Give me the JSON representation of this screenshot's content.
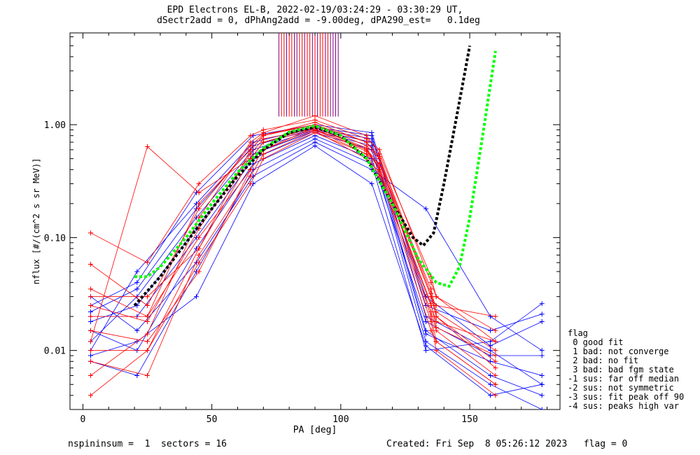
{
  "header": {
    "title_line1": "EPD Electrons EL-B, 2022-02-19/03:24:29 - 03:30:29 UT,",
    "title_line2": "dSectr2add = 0, dPhAng2add = -9.00deg, dPA290_est=   0.1deg"
  },
  "footer": {
    "left": "nspininsum =  1  sectors = 16",
    "right": "Created: Fri Sep  8 05:26:12 2023   flag = 0"
  },
  "legend": {
    "title": "flag",
    "items": [
      " 0 good fit",
      " 1 bad: not converge",
      " 2 bad: no fit",
      " 3 bad: bad fgm state",
      "-1 sus: far off median",
      "-2 sus: not symmetric",
      "-3 sus: fit peak off 90",
      "-4 sus: peaks high var"
    ]
  },
  "chart_data": {
    "type": "line",
    "title": "EPD Electrons EL-B, 2022-02-19/03:24:29 - 03:30:29 UT,",
    "xlabel": "PA [deg]",
    "ylabel": "nflux [#/(cm^2 s sr MeV)]",
    "xlim": [
      -5,
      185
    ],
    "ylim": [
      0.003,
      6.5
    ],
    "yscale": "log",
    "x_ticks": [
      0,
      50,
      100,
      150
    ],
    "y_ticks": [
      0.01,
      0.1,
      1.0
    ],
    "y_tick_labels": [
      "0.01",
      "0.10",
      "1.00"
    ],
    "grid": false,
    "series_colors": {
      "red": "#ff0000",
      "blue": "#0000ff",
      "black_fit": "#000000",
      "green_fit": "#00ff00",
      "purple": "#800080"
    },
    "pa_red_spin": [
      3,
      25,
      45,
      65,
      70,
      90,
      110,
      115,
      135,
      137,
      160
    ],
    "pa_blue_spin": [
      3,
      21,
      44,
      66,
      90,
      112,
      133,
      158,
      178
    ],
    "red_spectra": [
      [
        0.03,
        0.03,
        0.08,
        0.6,
        0.8,
        1.05,
        0.7,
        0.5,
        0.03,
        0.02,
        0.008
      ],
      [
        0.012,
        0.64,
        0.25,
        0.5,
        0.7,
        0.95,
        0.62,
        0.4,
        0.025,
        0.018,
        0.012
      ],
      [
        0.02,
        0.02,
        0.1,
        0.4,
        0.6,
        0.9,
        0.6,
        0.45,
        0.035,
        0.022,
        0.01
      ],
      [
        0.01,
        0.01,
        0.06,
        0.3,
        0.5,
        0.85,
        0.55,
        0.35,
        0.022,
        0.015,
        0.006
      ],
      [
        0.006,
        0.014,
        0.15,
        0.7,
        0.85,
        1.2,
        0.8,
        0.55,
        0.045,
        0.03,
        0.015
      ],
      [
        0.035,
        0.02,
        0.2,
        0.6,
        0.8,
        1.0,
        0.65,
        0.5,
        0.02,
        0.012,
        0.005
      ],
      [
        0.015,
        0.012,
        0.05,
        0.4,
        0.6,
        0.95,
        0.6,
        0.4,
        0.018,
        0.01,
        0.004
      ],
      [
        0.004,
        0.01,
        0.08,
        0.5,
        0.7,
        0.9,
        0.55,
        0.45,
        0.03,
        0.025,
        0.02
      ],
      [
        0.11,
        0.06,
        0.3,
        0.8,
        0.9,
        1.1,
        0.75,
        0.6,
        0.04,
        0.03,
        0.012
      ],
      [
        0.025,
        0.018,
        0.12,
        0.55,
        0.75,
        0.92,
        0.58,
        0.42,
        0.026,
        0.016,
        0.009
      ],
      [
        0.058,
        0.025,
        0.18,
        0.65,
        0.82,
        1.0,
        0.7,
        0.52,
        0.032,
        0.02,
        0.007
      ],
      [
        0.008,
        0.006,
        0.07,
        0.35,
        0.55,
        0.88,
        0.5,
        0.38,
        0.015,
        0.012,
        0.005
      ]
    ],
    "blue_spectra": [
      [
        0.01,
        0.05,
        0.2,
        0.7,
        0.95,
        0.8,
        0.02,
        0.01,
        0.005
      ],
      [
        0.012,
        0.03,
        0.15,
        0.6,
        0.9,
        0.7,
        0.015,
        0.006,
        0.004
      ],
      [
        0.02,
        0.02,
        0.1,
        0.5,
        0.85,
        0.6,
        0.012,
        0.005,
        0.003
      ],
      [
        0.015,
        0.01,
        0.08,
        0.45,
        0.8,
        0.5,
        0.018,
        0.009,
        0.009
      ],
      [
        0.008,
        0.006,
        0.05,
        0.4,
        0.75,
        0.45,
        0.01,
        0.012,
        0.026
      ],
      [
        0.025,
        0.04,
        0.25,
        0.8,
        1.0,
        0.85,
        0.025,
        0.015,
        0.021
      ],
      [
        0.018,
        0.025,
        0.12,
        0.55,
        0.88,
        0.65,
        0.014,
        0.008,
        0.006
      ],
      [
        0.03,
        0.015,
        0.06,
        0.35,
        0.7,
        0.4,
        0.18,
        0.02,
        0.01
      ],
      [
        0.009,
        0.012,
        0.03,
        0.3,
        0.65,
        0.3,
        0.011,
        0.004,
        0.005
      ],
      [
        0.022,
        0.035,
        0.18,
        0.65,
        0.92,
        0.75,
        0.03,
        0.011,
        0.018
      ]
    ],
    "fit_black": {
      "x": [
        20,
        30,
        40,
        50,
        60,
        70,
        80,
        90,
        100,
        110,
        120,
        128,
        132,
        136,
        140,
        145,
        150
      ],
      "y": [
        0.025,
        0.045,
        0.09,
        0.18,
        0.35,
        0.6,
        0.85,
        0.95,
        0.8,
        0.5,
        0.2,
        0.1,
        0.085,
        0.11,
        0.3,
        1.2,
        5.0
      ]
    },
    "fit_green": {
      "x": [
        20,
        25,
        30,
        40,
        50,
        60,
        70,
        80,
        90,
        100,
        110,
        120,
        130,
        137,
        142,
        146,
        150,
        155,
        160
      ],
      "y": [
        0.045,
        0.045,
        0.055,
        0.1,
        0.2,
        0.38,
        0.62,
        0.86,
        0.98,
        0.8,
        0.5,
        0.2,
        0.065,
        0.04,
        0.037,
        0.055,
        0.15,
        0.8,
        4.5
      ]
    },
    "marker_lines": {
      "red_x": [
        77,
        78,
        80,
        81,
        84,
        85,
        87,
        88,
        90,
        92,
        93,
        95
      ],
      "purple_x": [
        76,
        79,
        82,
        83,
        86,
        89,
        91,
        94,
        96,
        97,
        98,
        99
      ],
      "y_from": 1.18,
      "y_to": 6.5
    }
  }
}
